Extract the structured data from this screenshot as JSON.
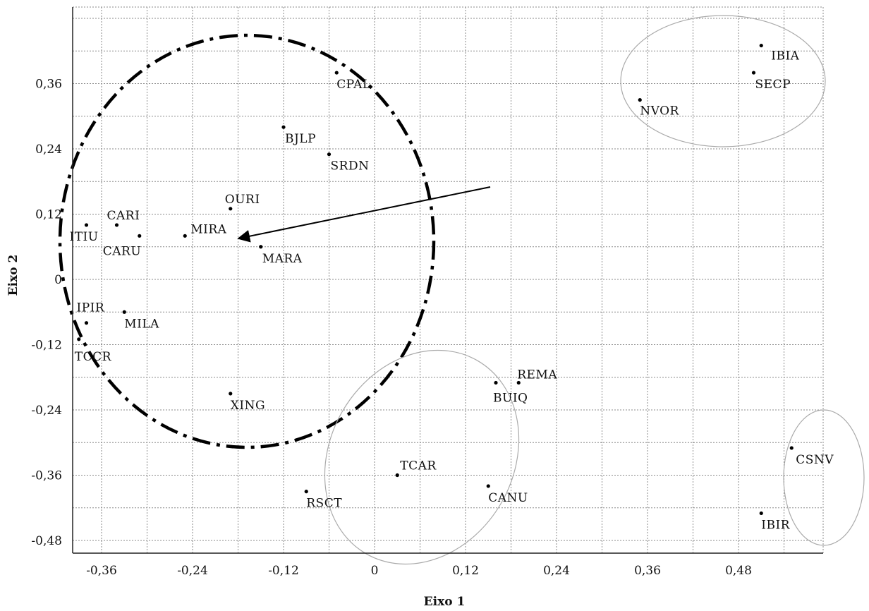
{
  "chart_data": {
    "type": "scatter",
    "xlabel": "Eixo 1",
    "ylabel": "Eixo 2",
    "xlim": [
      -0.4,
      0.6
    ],
    "ylim": [
      -0.5,
      0.46
    ],
    "grid": true,
    "x_ticks": [
      -0.36,
      -0.24,
      -0.12,
      0,
      0.12,
      0.24,
      0.36,
      0.48
    ],
    "x_tick_labels": [
      "-0,36",
      "-0,24",
      "-0,12",
      "0",
      "0,12",
      "0,24",
      "0,36",
      "0,48"
    ],
    "y_ticks": [
      -0.48,
      -0.36,
      -0.24,
      -0.12,
      0,
      0.12,
      0.24,
      0.36
    ],
    "y_tick_labels": [
      "-0,48",
      "-0,36",
      "-0,24",
      "-0,12",
      "0",
      "0,12",
      "0,24",
      "0,36"
    ],
    "points": [
      {
        "label": "IBIA",
        "x": 0.51,
        "y": 0.43
      },
      {
        "label": "SECP",
        "x": 0.5,
        "y": 0.38
      },
      {
        "label": "NVOR",
        "x": 0.35,
        "y": 0.33
      },
      {
        "label": "CPAL",
        "x": -0.05,
        "y": 0.38
      },
      {
        "label": "BJLP",
        "x": -0.12,
        "y": 0.28
      },
      {
        "label": "SRDN",
        "x": -0.06,
        "y": 0.23
      },
      {
        "label": "OURI",
        "x": -0.19,
        "y": 0.13
      },
      {
        "label": "CARI",
        "x": -0.34,
        "y": 0.1
      },
      {
        "label": "ITIU",
        "x": -0.38,
        "y": 0.1
      },
      {
        "label": "CARU",
        "x": -0.31,
        "y": 0.08
      },
      {
        "label": "MIRA",
        "x": -0.25,
        "y": 0.08
      },
      {
        "label": "MARA",
        "x": -0.15,
        "y": 0.06
      },
      {
        "label": "IPIR",
        "x": -0.38,
        "y": -0.08
      },
      {
        "label": "MILA",
        "x": -0.33,
        "y": -0.06
      },
      {
        "label": "TCCR",
        "x": -0.39,
        "y": -0.11
      },
      {
        "label": "XING",
        "x": -0.19,
        "y": -0.21
      },
      {
        "label": "REMA",
        "x": 0.19,
        "y": -0.19
      },
      {
        "label": "BUIQ",
        "x": 0.16,
        "y": -0.19
      },
      {
        "label": "TCAR",
        "x": 0.03,
        "y": -0.36
      },
      {
        "label": "CANU",
        "x": 0.15,
        "y": -0.38
      },
      {
        "label": "RSCT",
        "x": -0.09,
        "y": -0.39
      },
      {
        "label": "CSNV",
        "x": 0.55,
        "y": -0.31
      },
      {
        "label": "IBIR",
        "x": 0.51,
        "y": -0.43
      }
    ]
  }
}
